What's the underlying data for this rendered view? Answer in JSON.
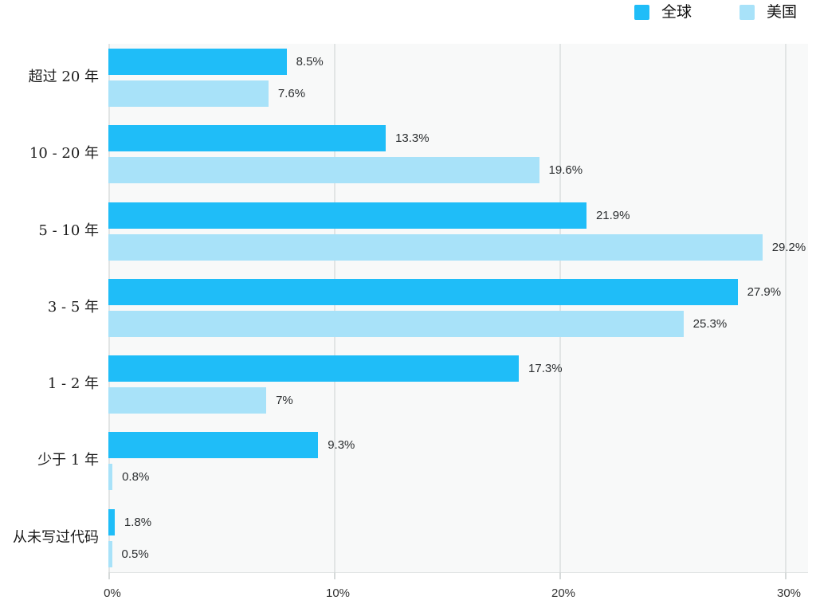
{
  "chart_data": {
    "type": "bar",
    "orientation": "horizontal",
    "categories": [
      "超过 20 年",
      "10 - 20 年",
      "5 - 10 年",
      "3 - 5 年",
      "1 - 2 年",
      "少于 1 年",
      "从未写过代码"
    ],
    "series": [
      {
        "name": "全球",
        "color": "#1FBDF8",
        "values": [
          8.5,
          13.3,
          21.9,
          27.9,
          17.3,
          9.3,
          1.8
        ],
        "labels": [
          "8.5%",
          "13.3%",
          "21.9%",
          "27.9%",
          "17.3%",
          "9.3%",
          "1.8%"
        ],
        "rendered_pct": [
          7.9,
          12.3,
          21.2,
          27.9,
          18.2,
          9.3,
          0.28
        ]
      },
      {
        "name": "美国",
        "color": "#A8E2F9",
        "values": [
          7.6,
          19.6,
          29.2,
          25.3,
          7,
          0.8,
          0.5
        ],
        "labels": [
          "7.6%",
          "19.6%",
          "29.2%",
          "25.3%",
          "7%",
          "0.8%",
          "0.5%"
        ],
        "rendered_pct": [
          7.1,
          19.1,
          29.0,
          25.5,
          7.0,
          0.18,
          0.16
        ]
      }
    ],
    "x_axis": {
      "ticks": [
        "0%",
        "10%",
        "20%",
        "30%"
      ],
      "tick_values": [
        0,
        10,
        20,
        30
      ],
      "max": 31,
      "grid": true
    },
    "legend": {
      "position": "top-right"
    },
    "colors": {
      "plot_background": "#f8f9f9",
      "gridline": "#e2e5e5",
      "axis_text": "#333333",
      "value_text": "#2b2e30"
    }
  }
}
